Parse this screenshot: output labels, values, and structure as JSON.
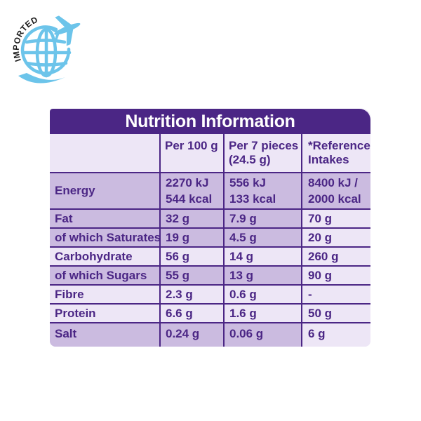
{
  "badge": {
    "text": "IMPORTED",
    "color": "#6cc4ea"
  },
  "table": {
    "title": "Nutrition Information",
    "colors": {
      "brand": "#4b2685",
      "shaded": "#cbbbe0",
      "light": "#ede6f6"
    },
    "headers": {
      "per100": "Per 100 g",
      "per7_line1": "Per 7 pieces",
      "per7_line2": "(24.5 g)",
      "ref_line1": "*Reference",
      "ref_line2": "Intakes"
    },
    "rows": [
      {
        "label": "Energy",
        "per100": [
          "2270 kJ",
          "544 kcal"
        ],
        "per7": [
          "556 kJ",
          "133 kcal"
        ],
        "ref": [
          "8400 kJ /",
          "2000 kcal"
        ]
      },
      {
        "label": "Fat",
        "per100": "32 g",
        "per7": "7.9 g",
        "ref": "70 g"
      },
      {
        "label": "of which Saturates",
        "per100": "19 g",
        "per7": "4.5 g",
        "ref": "20 g"
      },
      {
        "label": "Carbohydrate",
        "per100": "56 g",
        "per7": "14 g",
        "ref": "260 g"
      },
      {
        "label": "of which Sugars",
        "per100": "55 g",
        "per7": "13 g",
        "ref": "90 g"
      },
      {
        "label": "Fibre",
        "per100": "2.3 g",
        "per7": "0.6 g",
        "ref": "-"
      },
      {
        "label": "Protein",
        "per100": "6.6 g",
        "per7": "1.6 g",
        "ref": "50 g"
      },
      {
        "label": "Salt",
        "per100": "0.24 g",
        "per7": "0.06 g",
        "ref": "6 g"
      }
    ]
  }
}
